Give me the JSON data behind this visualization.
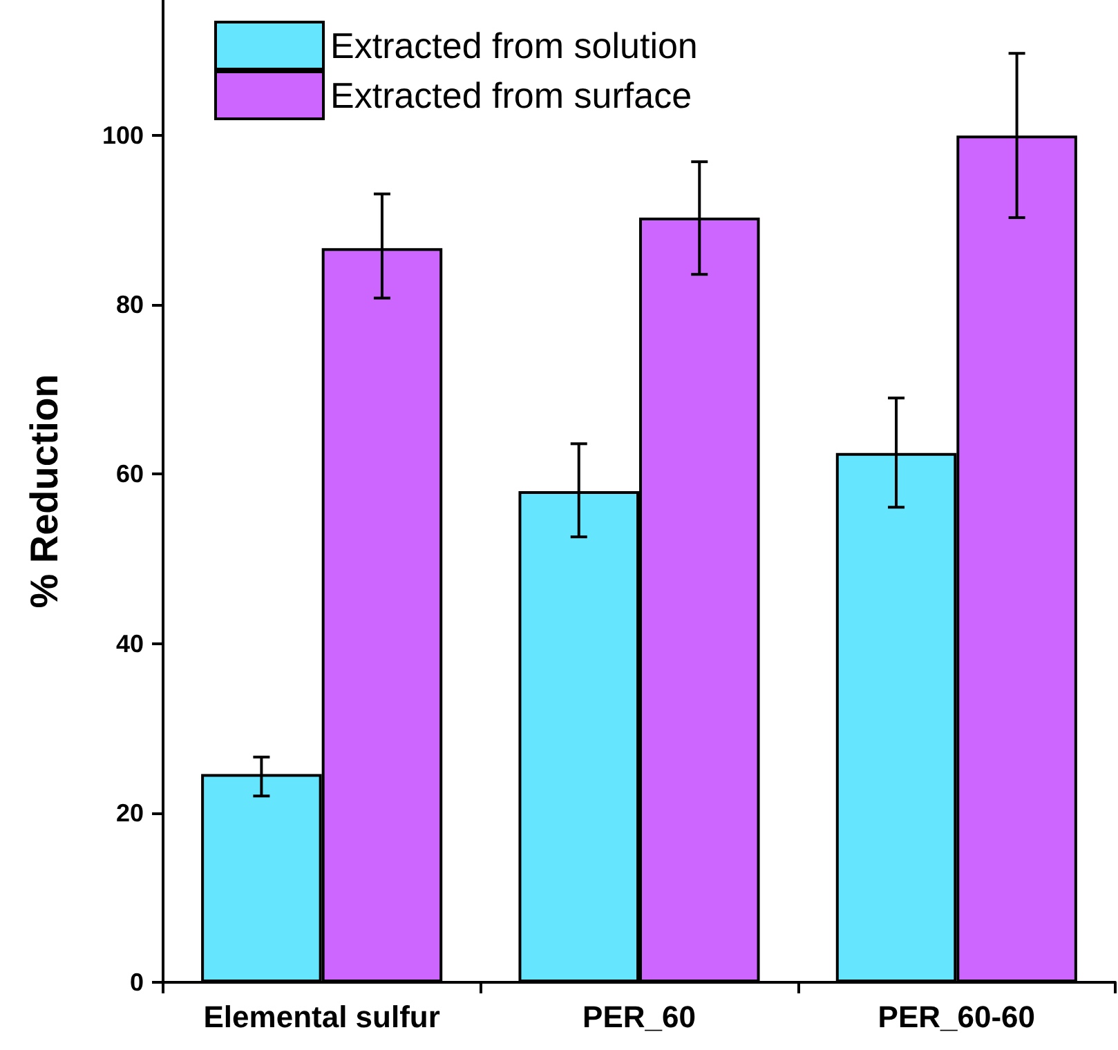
{
  "chart_data": {
    "type": "bar",
    "ylabel": "% Reduction",
    "categories": [
      "Elemental sulfur",
      "PER_60",
      "PER_60-60"
    ],
    "series": [
      {
        "name": "Extracted from solution",
        "color": "#66e5ff",
        "values": [
          24.6,
          58.0,
          62.5
        ],
        "errors": [
          [
            22.0,
            26.6
          ],
          [
            52.6,
            63.6
          ],
          [
            56.1,
            69.0
          ]
        ]
      },
      {
        "name": "Extracted from surface",
        "color": "#cc66ff",
        "values": [
          86.7,
          90.3,
          100.0
        ],
        "errors": [
          [
            80.8,
            93.1
          ],
          [
            83.6,
            96.9
          ],
          [
            90.3,
            109.7
          ]
        ]
      }
    ],
    "ylim": [
      0,
      116
    ],
    "yticks": [
      0,
      20,
      40,
      60,
      80,
      100
    ],
    "grid": false,
    "legend": "top left"
  }
}
